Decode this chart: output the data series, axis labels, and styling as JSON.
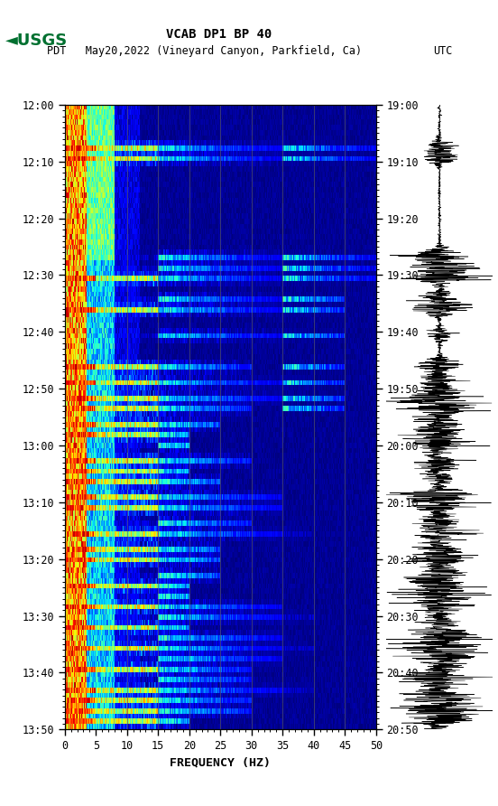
{
  "title_line1": "VCAB DP1 BP 40",
  "title_line2_left": "PDT   May20,2022 (Vineyard Canyon, Parkfield, Ca)",
  "title_line2_right": "UTC",
  "xlabel": "FREQUENCY (HZ)",
  "freq_min": 0,
  "freq_max": 50,
  "freq_ticks": [
    0,
    5,
    10,
    15,
    20,
    25,
    30,
    35,
    40,
    45,
    50
  ],
  "time_labels_left": [
    "12:00",
    "12:10",
    "12:20",
    "12:30",
    "12:40",
    "12:50",
    "13:00",
    "13:10",
    "13:20",
    "13:30",
    "13:40",
    "13:50"
  ],
  "time_labels_right": [
    "19:00",
    "19:10",
    "19:20",
    "19:30",
    "19:40",
    "19:50",
    "20:00",
    "20:10",
    "20:20",
    "20:30",
    "20:40",
    "20:50"
  ],
  "n_time_steps": 120,
  "n_freq_steps": 400,
  "background_color": "#ffffff",
  "usgs_green": "#007030",
  "vertical_line_freq": [
    10,
    15,
    20,
    25,
    30,
    35,
    40,
    45
  ],
  "vertical_line_color": "#606060",
  "figsize": [
    5.52,
    8.92
  ],
  "dpi": 100,
  "event_rows_top": [
    8,
    10,
    29,
    31,
    33,
    37,
    39,
    44
  ],
  "event_rows_mid": [
    50,
    53,
    56,
    58,
    61,
    63,
    65,
    68,
    70,
    72,
    75,
    77,
    80,
    82
  ],
  "event_rows_bot": [
    85,
    87,
    90,
    92,
    94,
    96,
    98,
    100,
    102,
    104,
    106,
    108,
    110,
    112,
    114,
    116,
    118
  ]
}
